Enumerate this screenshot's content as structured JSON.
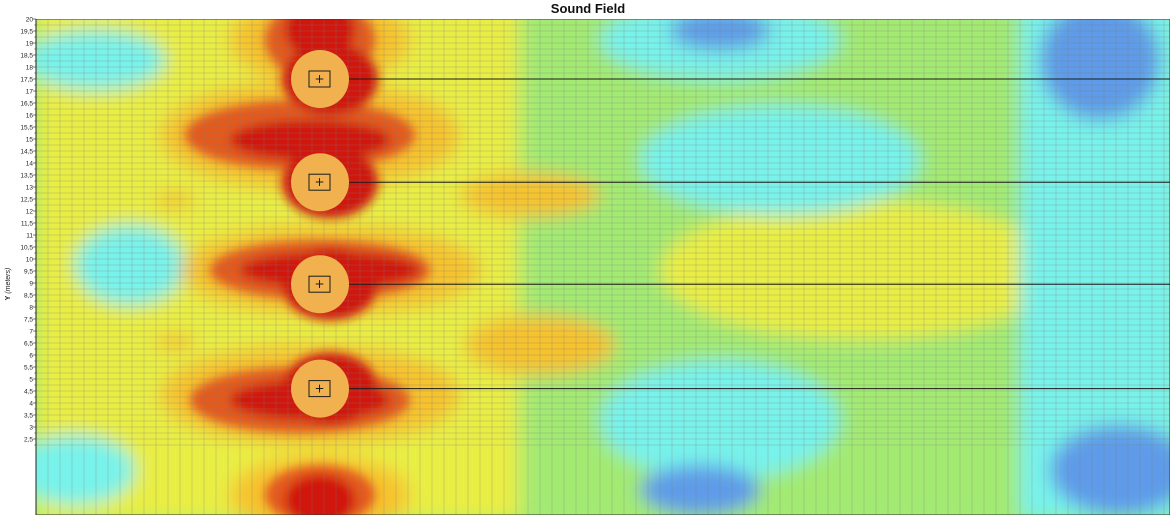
{
  "chart_data": {
    "type": "heatmap",
    "title": "Sound Field",
    "ylabel": "Y",
    "ylabel_unit": "(meters)",
    "ylim": [
      2.1,
      20
    ],
    "y_tick_step": 0.5,
    "y_ticks": [
      "20",
      "19,5",
      "19",
      "18,5",
      "18",
      "17,5",
      "17",
      "16,5",
      "16",
      "15,5",
      "15",
      "14,5",
      "14",
      "13,5",
      "13",
      "12,5",
      "12",
      "11,5",
      "11",
      "10,5",
      "10",
      "9,5",
      "9",
      "8,5",
      "8",
      "7,5",
      "7",
      "6,5",
      "6",
      "5,5",
      "5",
      "4,5",
      "4",
      "3,5",
      "3",
      "2,5"
    ],
    "grid": true,
    "colors": {
      "max": "#d0150f",
      "high": "#e45a1c",
      "mid_high": "#f6c22e",
      "mid": "#e9ee44",
      "mid_low": "#a3ea73",
      "low": "#78f2ea",
      "min": "#5f9be8",
      "grid": "#7d7d7d",
      "source_disc": "#f1b14f",
      "marker": "#1a1a1a"
    },
    "sources": [
      {
        "y": 17.5,
        "label": "+"
      },
      {
        "y": 13.2,
        "label": "+"
      },
      {
        "y": 8.95,
        "label": "+"
      },
      {
        "y": 4.6,
        "label": "+"
      }
    ]
  }
}
